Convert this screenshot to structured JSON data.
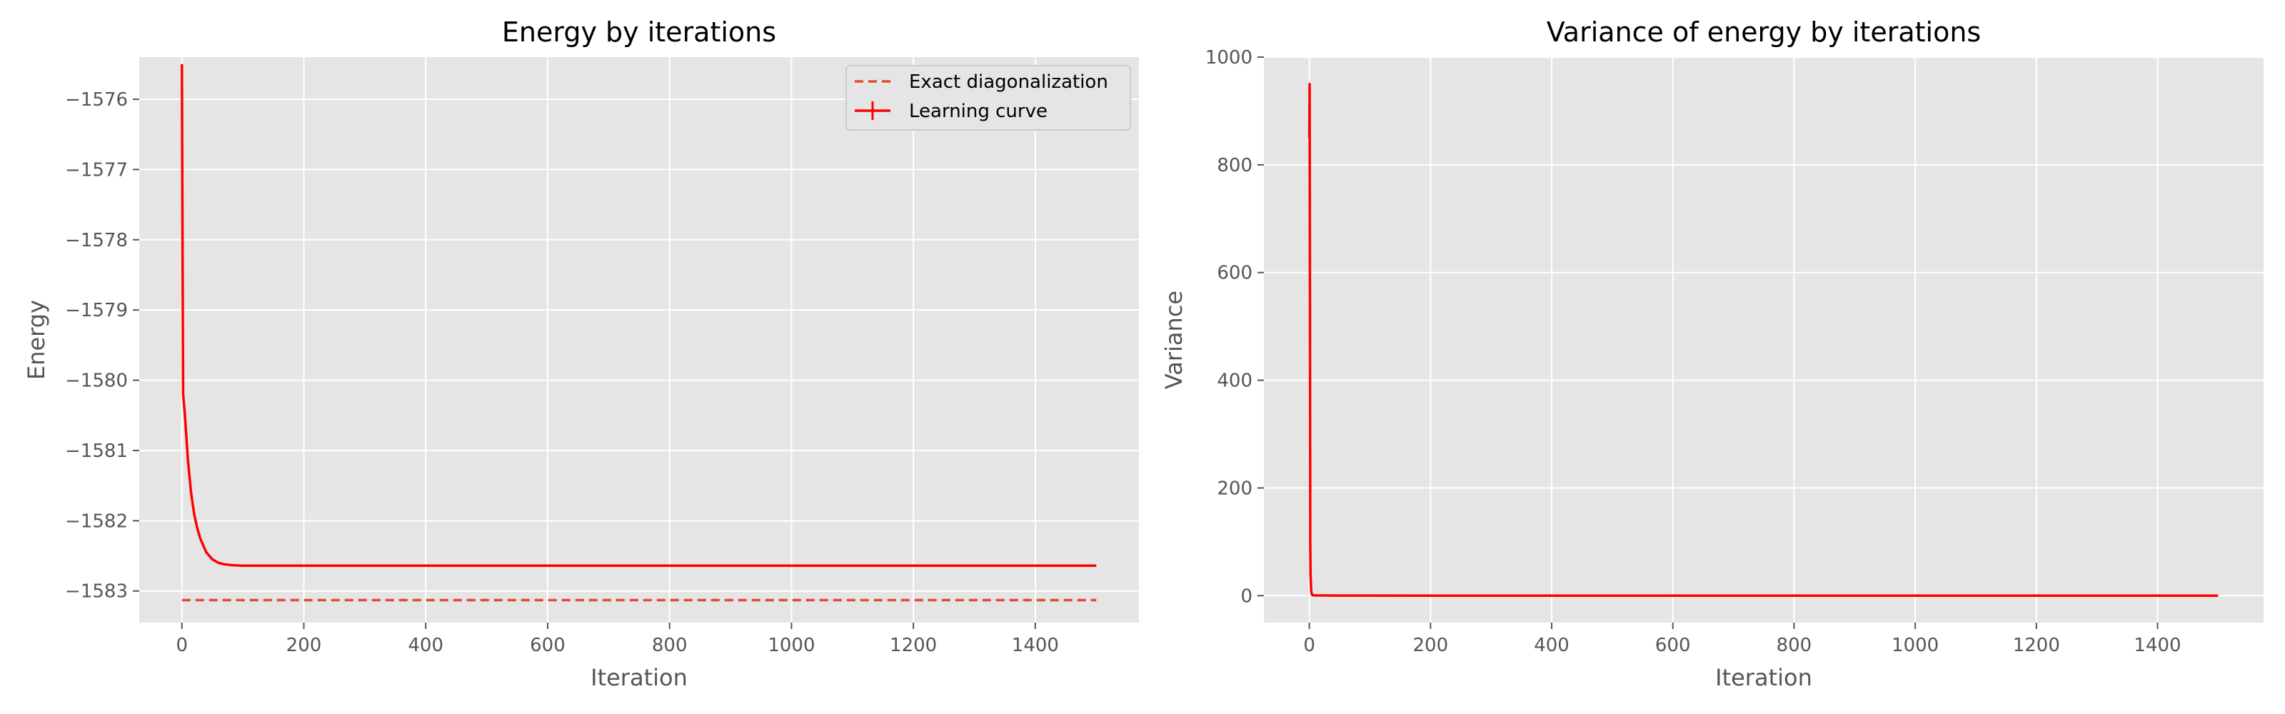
{
  "chart_data": [
    {
      "type": "line",
      "title": "Energy by iterations",
      "xlabel": "Iteration",
      "ylabel": "Energy",
      "xlim": [
        -70,
        1570
      ],
      "ylim": [
        -1583.45,
        -1575.4
      ],
      "xticks": [
        0,
        200,
        400,
        600,
        800,
        1000,
        1200,
        1400
      ],
      "xtick_labels": [
        "0",
        "200",
        "400",
        "600",
        "800",
        "1000",
        "1200",
        "1400"
      ],
      "yticks": [
        -1583,
        -1582,
        -1581,
        -1580,
        -1579,
        -1578,
        -1577,
        -1576
      ],
      "ytick_labels": [
        "−1583",
        "−1582",
        "−1581",
        "−1580",
        "−1579",
        "−1578",
        "−1577",
        "−1576"
      ],
      "grid": true,
      "legend_position": "top-right",
      "series": [
        {
          "name": "Exact diagonalization",
          "style": "dashed",
          "color": "#e24a33",
          "x": [
            0,
            1500
          ],
          "y": [
            -1583.13,
            -1583.13
          ]
        },
        {
          "name": "Learning curve",
          "style": "solid",
          "color": "#ff0000",
          "x": [
            0,
            1,
            2,
            3,
            5,
            8,
            10,
            15,
            20,
            25,
            30,
            40,
            50,
            60,
            70,
            80,
            100,
            150,
            200,
            300,
            400,
            500,
            600,
            700,
            800,
            900,
            1000,
            1100,
            1200,
            1300,
            1400,
            1500
          ],
          "y": [
            -1575.5,
            -1578.0,
            -1580.2,
            -1580.3,
            -1580.5,
            -1580.9,
            -1581.15,
            -1581.6,
            -1581.9,
            -1582.1,
            -1582.25,
            -1582.45,
            -1582.55,
            -1582.6,
            -1582.62,
            -1582.63,
            -1582.64,
            -1582.64,
            -1582.64,
            -1582.64,
            -1582.64,
            -1582.64,
            -1582.64,
            -1582.64,
            -1582.64,
            -1582.64,
            -1582.64,
            -1582.64,
            -1582.64,
            -1582.64,
            -1582.64,
            -1582.64
          ]
        }
      ]
    },
    {
      "type": "line",
      "title": "Variance of energy by iterations",
      "xlabel": "Iteration",
      "ylabel": "Variance",
      "xlim": [
        -75,
        1575
      ],
      "ylim": [
        -50,
        1000
      ],
      "xticks": [
        0,
        200,
        400,
        600,
        800,
        1000,
        1200,
        1400
      ],
      "xtick_labels": [
        "0",
        "200",
        "400",
        "600",
        "800",
        "1000",
        "1200",
        "1400"
      ],
      "yticks": [
        0,
        200,
        400,
        600,
        800,
        1000
      ],
      "ytick_labels": [
        "0",
        "200",
        "400",
        "600",
        "800",
        "1000"
      ],
      "grid": true,
      "series": [
        {
          "style": "solid",
          "color": "#ff0000",
          "x": [
            0,
            0.5,
            1,
            1.5,
            2,
            3,
            4,
            5,
            10,
            50,
            200,
            500,
            1000,
            1500
          ],
          "y": [
            850,
            950,
            600,
            100,
            40,
            10,
            3,
            1,
            0.5,
            0.2,
            0.1,
            0.1,
            0.1,
            0.1
          ]
        }
      ]
    }
  ]
}
